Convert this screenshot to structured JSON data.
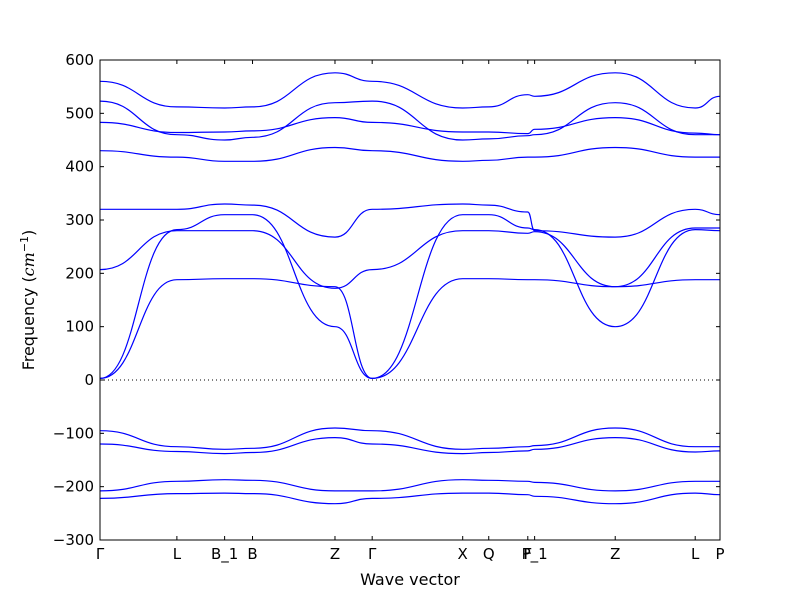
{
  "chart_data": {
    "type": "line",
    "title": "",
    "xlabel": "Wave vector",
    "ylabel_prefix": "Frequency (",
    "ylabel_math": "cm",
    "ylabel_exp": "−1",
    "ylabel_suffix": ")",
    "ylim": [
      -300,
      600
    ],
    "yticks": [
      -300,
      -200,
      -100,
      0,
      100,
      200,
      300,
      400,
      500,
      600
    ],
    "ytick_labels": [
      "−300",
      "−200",
      "−100",
      "0",
      "100",
      "200",
      "300",
      "400",
      "500",
      "600"
    ],
    "xlim": [
      0,
      100
    ],
    "xticks": [
      {
        "x": 0,
        "label": "Γ"
      },
      {
        "x": 12.4,
        "label": "L"
      },
      {
        "x": 20.1,
        "label": "B_1"
      },
      {
        "x": 24.6,
        "label": "B"
      },
      {
        "x": 37.9,
        "label": "Z"
      },
      {
        "x": 43.9,
        "label": "Γ"
      },
      {
        "x": 58.5,
        "label": "X"
      },
      {
        "x": 62.7,
        "label": "Q"
      },
      {
        "x": 69.0,
        "label": "F"
      },
      {
        "x": 70.1,
        "label": "P_1"
      },
      {
        "x": 83.1,
        "label": "Z"
      },
      {
        "x": 96.0,
        "label": "L"
      },
      {
        "x": 100,
        "label": "P"
      }
    ],
    "zero_line": true,
    "line_color": "#0000ff",
    "series": [
      {
        "x": [
          0,
          12.4,
          20.1,
          24.6,
          37.9,
          43.9,
          58.5,
          62.7,
          69.0,
          70.1,
          83.1,
          96.0,
          100
        ],
        "values": [
          3,
          282,
          310,
          310,
          100,
          3,
          310,
          310,
          285,
          282,
          100,
          282,
          280
        ]
      },
      {
        "x": [
          0,
          12.4,
          20.1,
          24.6,
          37.9,
          43.9,
          58.5,
          62.7,
          69.0,
          70.1,
          83.1,
          96.0,
          100
        ],
        "values": [
          3,
          188,
          190,
          190,
          175,
          3,
          190,
          190,
          188,
          188,
          175,
          188,
          188
        ]
      },
      {
        "x": [
          0,
          12.4,
          20.1,
          24.6,
          37.9,
          43.9,
          58.5,
          62.7,
          69.0,
          70.1,
          83.1,
          96.0,
          100
        ],
        "values": [
          207,
          280,
          280,
          280,
          172,
          207,
          280,
          280,
          275,
          278,
          175,
          285,
          285
        ]
      },
      {
        "x": [
          0,
          12.4,
          20.1,
          24.6,
          37.9,
          43.9,
          58.5,
          62.7,
          69.0,
          70.1,
          83.1,
          96.0,
          100
        ],
        "values": [
          320,
          320,
          330,
          328,
          268,
          320,
          330,
          328,
          315,
          280,
          268,
          320,
          310
        ]
      },
      {
        "x": [
          0,
          12.4,
          20.1,
          24.6,
          37.9,
          43.9,
          58.5,
          62.7,
          69.0,
          70.1,
          83.1,
          96.0,
          100
        ],
        "values": [
          430,
          418,
          410,
          410,
          436,
          430,
          410,
          412,
          418,
          418,
          436,
          418,
          418
        ]
      },
      {
        "x": [
          0,
          12.4,
          20.1,
          24.6,
          37.9,
          43.9,
          58.5,
          62.7,
          69.0,
          70.1,
          83.1,
          96.0,
          100
        ],
        "values": [
          483,
          464,
          465,
          467,
          492,
          483,
          465,
          465,
          462,
          470,
          492,
          463,
          460
        ]
      },
      {
        "x": [
          0,
          12.4,
          20.1,
          24.6,
          37.9,
          43.9,
          58.5,
          62.7,
          69.0,
          70.1,
          83.1,
          96.0,
          100
        ],
        "values": [
          523,
          460,
          450,
          455,
          520,
          523,
          450,
          452,
          458,
          460,
          520,
          460,
          460
        ]
      },
      {
        "x": [
          0,
          12.4,
          20.1,
          24.6,
          37.9,
          43.9,
          58.5,
          62.7,
          69.0,
          70.1,
          83.1,
          96.0,
          100
        ],
        "values": [
          560,
          512,
          510,
          512,
          576,
          560,
          510,
          512,
          535,
          532,
          576,
          510,
          532
        ]
      },
      {
        "x": [
          0,
          12.4,
          20.1,
          24.6,
          37.9,
          43.9,
          58.5,
          62.7,
          69.0,
          70.1,
          83.1,
          96.0,
          100
        ],
        "values": [
          -95,
          -125,
          -130,
          -128,
          -90,
          -95,
          -130,
          -128,
          -125,
          -123,
          -90,
          -125,
          -125
        ]
      },
      {
        "x": [
          0,
          12.4,
          20.1,
          24.6,
          37.9,
          43.9,
          58.5,
          62.7,
          69.0,
          70.1,
          83.1,
          96.0,
          100
        ],
        "values": [
          -120,
          -134,
          -138,
          -136,
          -108,
          -120,
          -138,
          -136,
          -133,
          -130,
          -108,
          -135,
          -133
        ]
      },
      {
        "x": [
          0,
          12.4,
          20.1,
          24.6,
          37.9,
          43.9,
          58.5,
          62.7,
          69.0,
          70.1,
          83.1,
          96.0,
          100
        ],
        "values": [
          -208,
          -190,
          -187,
          -188,
          -208,
          -208,
          -187,
          -188,
          -190,
          -192,
          -208,
          -190,
          -190
        ]
      },
      {
        "x": [
          0,
          12.4,
          20.1,
          24.6,
          37.9,
          43.9,
          58.5,
          62.7,
          69.0,
          70.1,
          83.1,
          96.0,
          100
        ],
        "values": [
          -222,
          -213,
          -212,
          -213,
          -232,
          -222,
          -212,
          -212,
          -215,
          -218,
          -232,
          -212,
          -215
        ]
      }
    ]
  }
}
